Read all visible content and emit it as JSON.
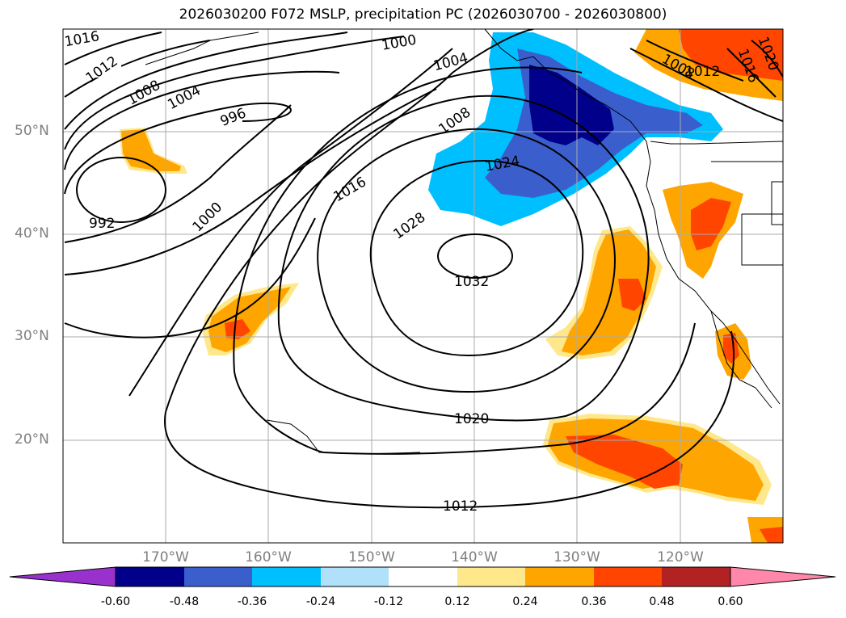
{
  "title": "2026030200 F072 MSLP, precipitation PC (2026030700 - 2026030800)",
  "lat_labels": [
    "50°N",
    "40°N",
    "30°N",
    "20°N"
  ],
  "lon_labels": [
    "170°W",
    "160°W",
    "150°W",
    "140°W",
    "130°W",
    "120°W"
  ],
  "isobar_labels": [
    "1016",
    "1012",
    "1008",
    "1004",
    "996",
    "992",
    "1000",
    "1000",
    "1004",
    "1008",
    "1016",
    "1024",
    "1028",
    "1032",
    "1020",
    "1012",
    "1008",
    "1012",
    "1016",
    "1020"
  ],
  "colorbar": {
    "ticks": [
      "-0.60",
      "-0.48",
      "-0.36",
      "-0.24",
      "-0.12",
      "0.12",
      "0.24",
      "0.36",
      "0.48",
      "0.60"
    ],
    "colors": [
      "#9932cc",
      "#00008b",
      "#3a5fcd",
      "#00bfff",
      "#b0e0fa",
      "#ffffff",
      "#ffe88c",
      "#ffa500",
      "#ff4500",
      "#b22222",
      "#ff88aa"
    ]
  },
  "shading_colors": {
    "light_orange": "#ffe88c",
    "orange": "#ffa500",
    "red_orange": "#ff4500",
    "light_blue": "#00bfff",
    "blue": "#3a5fcd",
    "navy": "#00008b"
  }
}
